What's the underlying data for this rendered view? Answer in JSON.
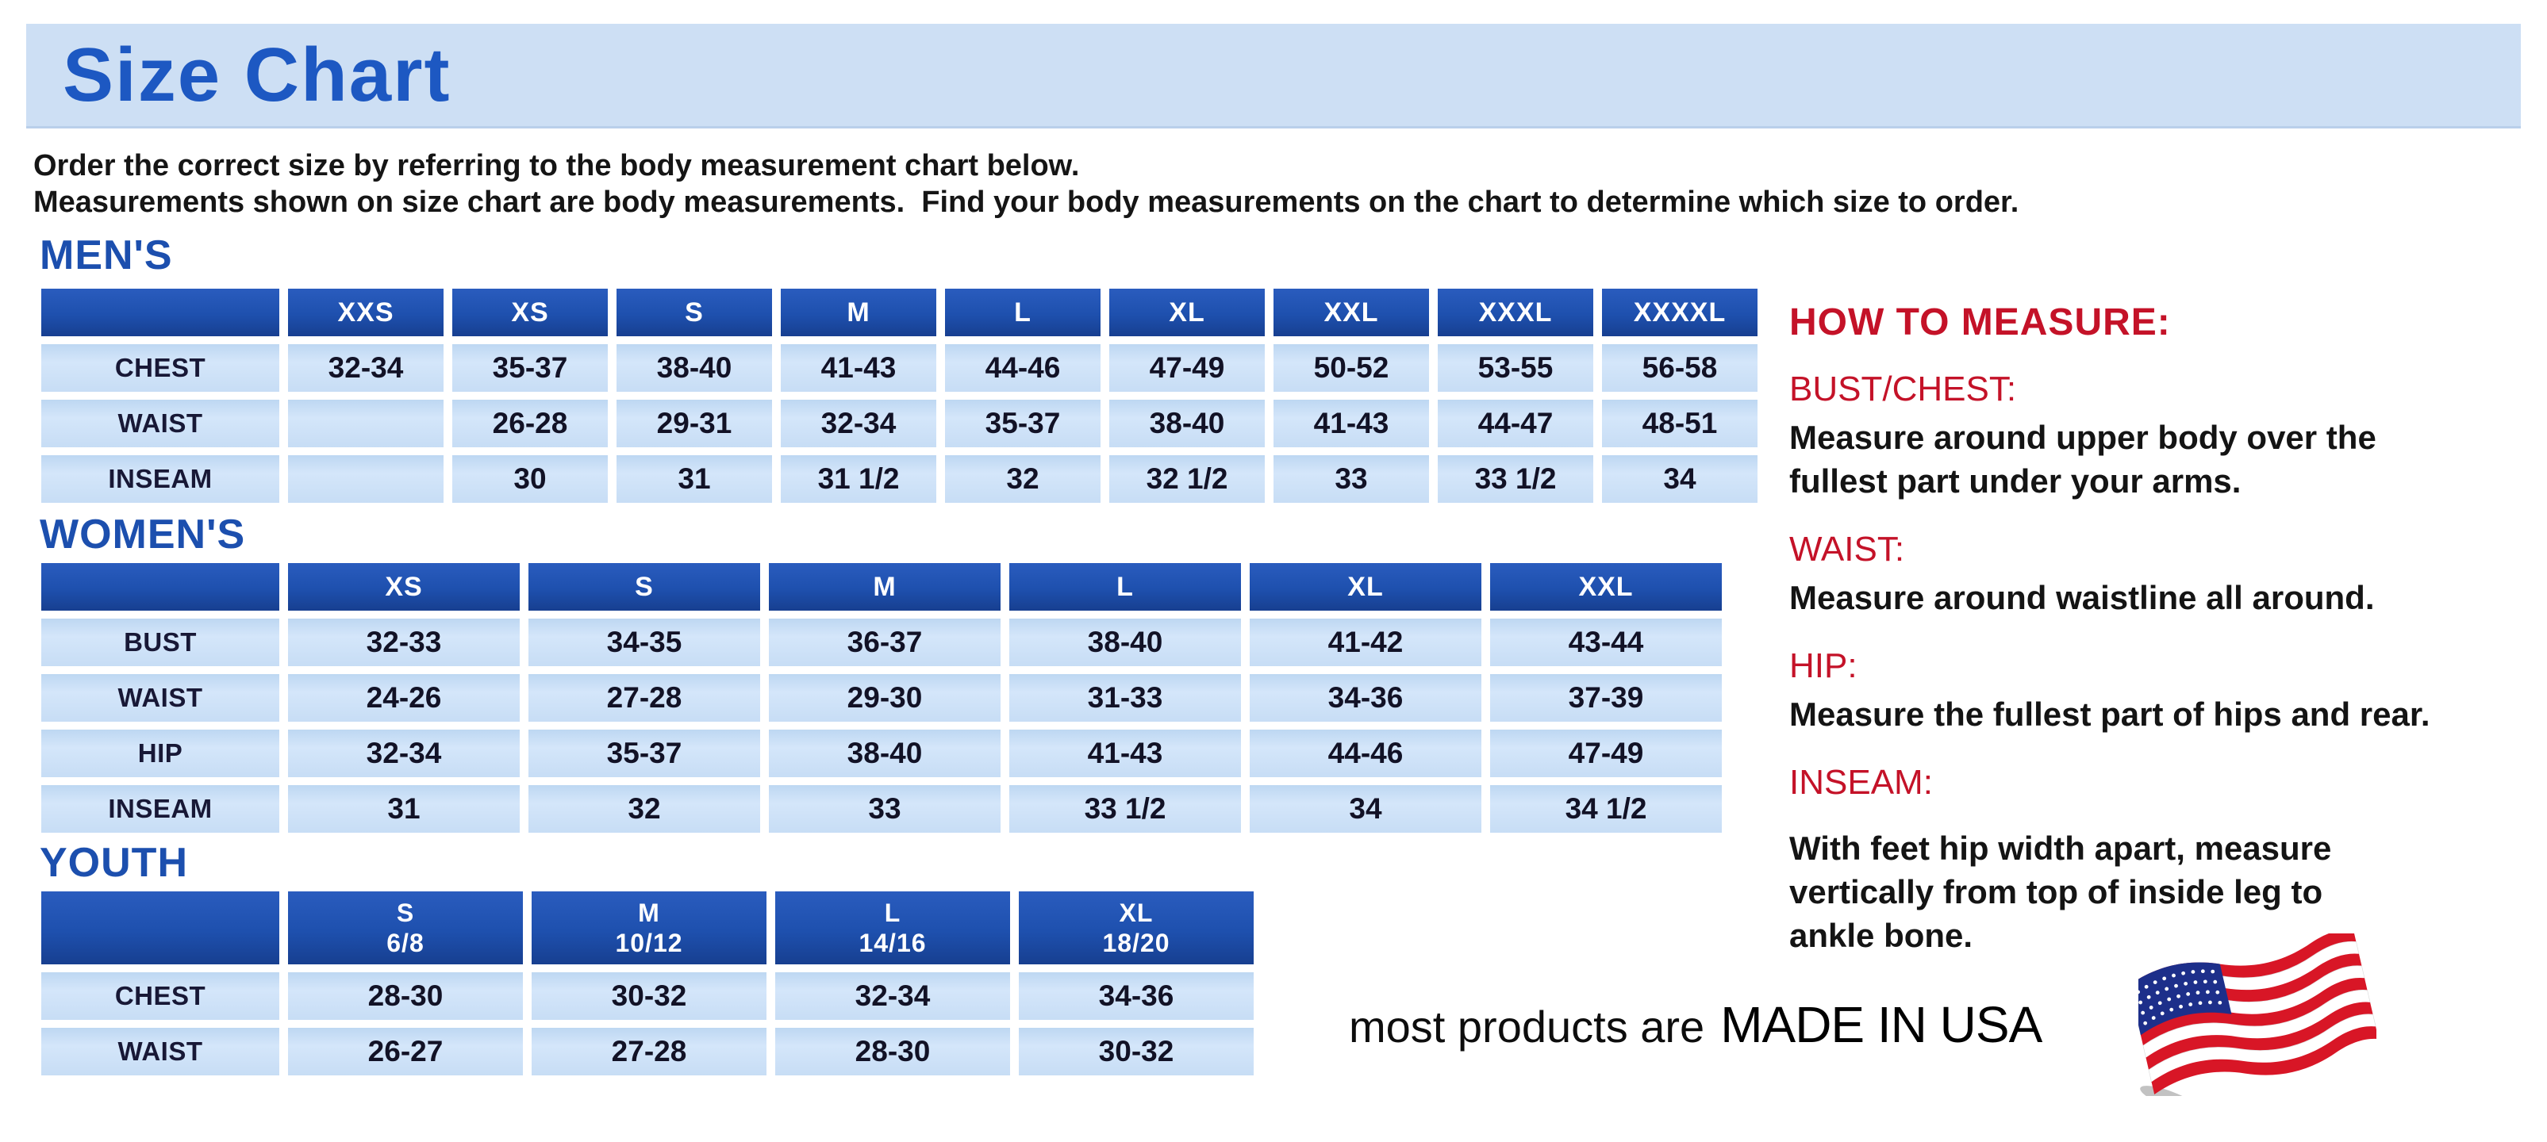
{
  "page": {
    "title": "Size Chart"
  },
  "intro": {
    "lines": [
      "Order the correct size by referring to the body measurement chart below.",
      "Measurements shown on size chart are body measurements.  Find your body measurements on the chart to determine which size to order."
    ]
  },
  "sections": {
    "mens": {
      "heading": "MEN'S",
      "columns": [
        "XXS",
        "XS",
        "S",
        "M",
        "L",
        "XL",
        "XXL",
        "XXXL",
        "XXXXL"
      ],
      "rows": [
        {
          "label": "CHEST",
          "values": [
            "32-34",
            "35-37",
            "38-40",
            "41-43",
            "44-46",
            "47-49",
            "50-52",
            "53-55",
            "56-58"
          ]
        },
        {
          "label": "WAIST",
          "values": [
            "",
            "26-28",
            "29-31",
            "32-34",
            "35-37",
            "38-40",
            "41-43",
            "44-47",
            "48-51"
          ]
        },
        {
          "label": "INSEAM",
          "values": [
            "",
            "30",
            "31",
            "31 1/2",
            "32",
            "32 1/2",
            "33",
            "33 1/2",
            "34"
          ]
        }
      ]
    },
    "womens": {
      "heading": "WOMEN'S",
      "columns": [
        "XS",
        "S",
        "M",
        "L",
        "XL",
        "XXL"
      ],
      "rows": [
        {
          "label": "BUST",
          "values": [
            "32-33",
            "34-35",
            "36-37",
            "38-40",
            "41-42",
            "43-44"
          ]
        },
        {
          "label": "WAIST",
          "values": [
            "24-26",
            "27-28",
            "29-30",
            "31-33",
            "34-36",
            "37-39"
          ]
        },
        {
          "label": "HIP",
          "values": [
            "32-34",
            "35-37",
            "38-40",
            "41-43",
            "44-46",
            "47-49"
          ]
        },
        {
          "label": "INSEAM",
          "values": [
            "31",
            "32",
            "33",
            "33 1/2",
            "34",
            "34 1/2"
          ]
        }
      ]
    },
    "youth": {
      "heading": "YOUTH",
      "columns": [
        {
          "size": "S",
          "range": "6/8"
        },
        {
          "size": "M",
          "range": "10/12"
        },
        {
          "size": "L",
          "range": "14/16"
        },
        {
          "size": "XL",
          "range": "18/20"
        }
      ],
      "rows": [
        {
          "label": "CHEST",
          "values": [
            "28-30",
            "30-32",
            "32-34",
            "34-36"
          ]
        },
        {
          "label": "WAIST",
          "values": [
            "26-27",
            "27-28",
            "28-30",
            "30-32"
          ]
        }
      ]
    }
  },
  "how_to_measure": {
    "heading": "HOW TO MEASURE:",
    "items": [
      {
        "term": "BUST/CHEST:",
        "lines": [
          "Measure around upper body over the",
          "fullest part under your arms."
        ]
      },
      {
        "term": "WAIST:",
        "lines": [
          "Measure around waistline all around."
        ]
      },
      {
        "term": "HIP:",
        "lines": [
          "Measure the fullest part of hips and rear."
        ]
      },
      {
        "term": "INSEAM:",
        "lines": [
          "With feet hip width apart, measure",
          "vertically from top of inside leg to",
          "ankle bone."
        ],
        "extra_gap": true
      }
    ]
  },
  "footer": {
    "prefix": "most products are",
    "emphasis": "MADE IN USA",
    "flag_icon": "usa-flag-icon"
  },
  "colors": {
    "banner_bg": "#cddff4",
    "title_text": "#1d58c2",
    "section_heading": "#1c4fae",
    "table_header_bg": "#1e50ae",
    "table_cell_bg": "#c7ddf5",
    "red_heading": "#c41228",
    "flag_red": "#d81626",
    "flag_blue": "#1d2f8a"
  }
}
